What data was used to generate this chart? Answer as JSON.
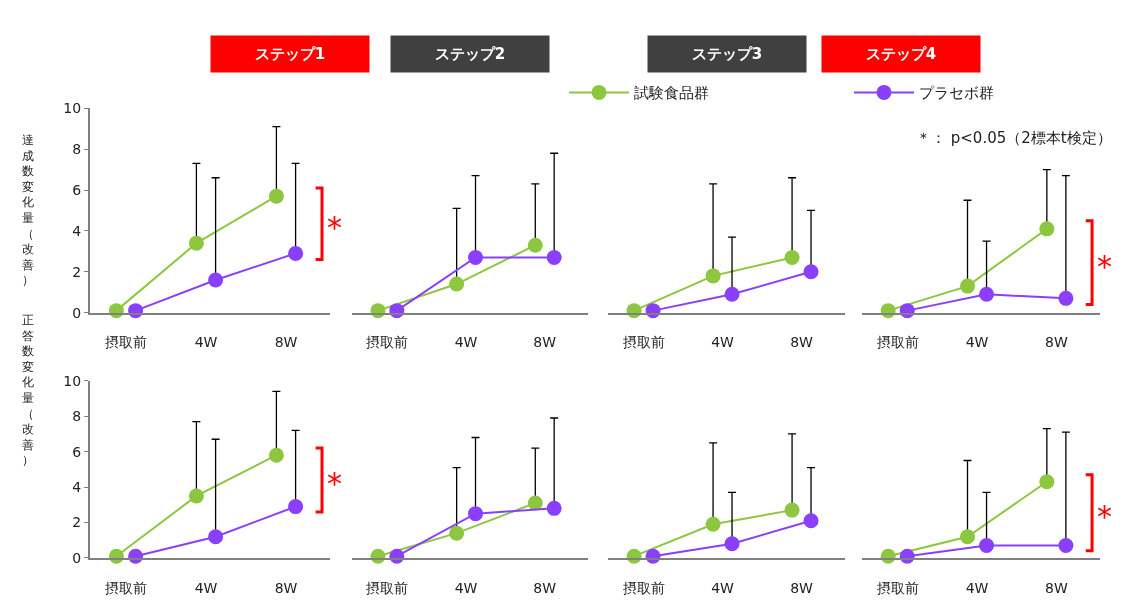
{
  "chart_data": [
    {
      "type": "line",
      "title": "ステップ1",
      "ylabel": "達成数変化量（改善）",
      "categories": [
        "摂取前",
        "4W",
        "8W"
      ],
      "ylim": [
        0,
        10
      ],
      "yticks": [
        0,
        2,
        4,
        6,
        8,
        10
      ],
      "legend": "top right",
      "marker": "circle",
      "line_style": "solid",
      "series": [
        {
          "name": "試験食品群",
          "color": "#8dc63f",
          "values": [
            0.1,
            3.4,
            5.7
          ],
          "errors": [
            null,
            [
              3.4,
              7.3
            ],
            [
              5.7,
              9.1
            ]
          ]
        },
        {
          "name": "プラセボ群",
          "color": "#8a3ffc",
          "values": [
            0.1,
            1.6,
            2.9
          ],
          "errors": [
            null,
            [
              1.6,
              6.6
            ],
            [
              2.9,
              7.3
            ]
          ]
        }
      ],
      "annotations": [
        "*"
      ]
    },
    {
      "type": "line",
      "title": "ステップ2",
      "categories": [
        "摂取前",
        "4W",
        "8W"
      ],
      "ylim": [
        0,
        10
      ],
      "tick_labels": "x",
      "marker": "circle",
      "line_style": "solid",
      "series": [
        {
          "color": "#8dc63f",
          "values": [
            0.1,
            1.4,
            3.3
          ],
          "errors": [
            null,
            [
              1.4,
              5.1
            ],
            [
              3.3,
              6.3
            ]
          ]
        },
        {
          "color": "#8a3ffc",
          "values": [
            0.1,
            2.7,
            2.7
          ],
          "errors": [
            null,
            [
              2.7,
              6.7
            ],
            [
              2.7,
              7.8
            ]
          ]
        }
      ]
    },
    {
      "type": "line",
      "title": "ステップ3",
      "categories": [
        "摂取前",
        "4W",
        "8W"
      ],
      "ylim": [
        0,
        10
      ],
      "tick_labels": "x",
      "marker": "circle",
      "line_style": "solid",
      "series": [
        {
          "color": "#8dc63f",
          "values": [
            0.1,
            1.8,
            2.7
          ],
          "errors": [
            null,
            [
              1.8,
              6.3
            ],
            [
              2.7,
              6.6
            ]
          ]
        },
        {
          "color": "#8a3ffc",
          "values": [
            0.1,
            0.9,
            2.0
          ],
          "errors": [
            null,
            [
              0.9,
              3.7
            ],
            [
              2.0,
              5.0
            ]
          ]
        }
      ]
    },
    {
      "type": "line",
      "title": "ステップ4",
      "categories": [
        "摂取前",
        "4W",
        "8W"
      ],
      "ylim": [
        0,
        10
      ],
      "tick_labels": "x",
      "marker": "circle",
      "line_style": "solid",
      "series": [
        {
          "color": "#8dc63f",
          "values": [
            0.1,
            1.3,
            4.1
          ],
          "errors": [
            null,
            [
              1.3,
              5.5
            ],
            [
              4.1,
              7.0
            ]
          ]
        },
        {
          "color": "#8a3ffc",
          "values": [
            0.1,
            0.9,
            0.7
          ],
          "errors": [
            null,
            [
              0.9,
              3.5
            ],
            [
              0.7,
              6.7
            ]
          ]
        }
      ],
      "annotations": [
        "*",
        "＊： p<0.05（2標本t検定）"
      ]
    },
    {
      "type": "line",
      "ylabel": "正答数変化量（改善）",
      "categories": [
        "摂取前",
        "4W",
        "8W"
      ],
      "ylim": [
        0,
        10
      ],
      "yticks": [
        0,
        2,
        4,
        6,
        8,
        10
      ],
      "marker": "circle",
      "line_style": "solid",
      "series": [
        {
          "color": "#8dc63f",
          "values": [
            0.1,
            3.5,
            5.8
          ],
          "errors": [
            null,
            [
              3.5,
              7.7
            ],
            [
              5.8,
              9.4
            ]
          ]
        },
        {
          "color": "#8a3ffc",
          "values": [
            0.1,
            1.2,
            2.9
          ],
          "errors": [
            null,
            [
              1.2,
              6.7
            ],
            [
              2.9,
              7.2
            ]
          ]
        }
      ],
      "annotations": [
        "*"
      ]
    },
    {
      "type": "line",
      "categories": [
        "摂取前",
        "4W",
        "8W"
      ],
      "ylim": [
        0,
        10
      ],
      "tick_labels": "x",
      "marker": "circle",
      "line_style": "solid",
      "series": [
        {
          "color": "#8dc63f",
          "values": [
            0.1,
            1.4,
            3.1
          ],
          "errors": [
            null,
            [
              1.4,
              5.1
            ],
            [
              3.1,
              6.2
            ]
          ]
        },
        {
          "color": "#8a3ffc",
          "values": [
            0.1,
            2.5,
            2.8
          ],
          "errors": [
            null,
            [
              2.5,
              6.8
            ],
            [
              2.8,
              7.9
            ]
          ]
        }
      ]
    },
    {
      "type": "line",
      "categories": [
        "摂取前",
        "4W",
        "8W"
      ],
      "ylim": [
        0,
        10
      ],
      "tick_labels": "x",
      "marker": "circle",
      "line_style": "solid",
      "series": [
        {
          "color": "#8dc63f",
          "values": [
            0.1,
            1.9,
            2.7
          ],
          "errors": [
            null,
            [
              1.9,
              6.5
            ],
            [
              2.7,
              7.0
            ]
          ]
        },
        {
          "color": "#8a3ffc",
          "values": [
            0.1,
            0.8,
            2.1
          ],
          "errors": [
            null,
            [
              0.8,
              3.7
            ],
            [
              2.1,
              5.1
            ]
          ]
        }
      ]
    },
    {
      "type": "line",
      "categories": [
        "摂取前",
        "4W",
        "8W"
      ],
      "ylim": [
        0,
        10
      ],
      "tick_labels": "x",
      "marker": "circle",
      "line_style": "solid",
      "series": [
        {
          "color": "#8dc63f",
          "values": [
            0.1,
            1.2,
            4.3
          ],
          "errors": [
            null,
            [
              1.2,
              5.5
            ],
            [
              4.3,
              7.3
            ]
          ]
        },
        {
          "color": "#8a3ffc",
          "values": [
            0.1,
            0.7,
            0.7
          ],
          "errors": [
            null,
            [
              0.7,
              3.7
            ],
            [
              0.7,
              7.1
            ]
          ]
        }
      ],
      "annotations": [
        "*"
      ]
    }
  ]
}
